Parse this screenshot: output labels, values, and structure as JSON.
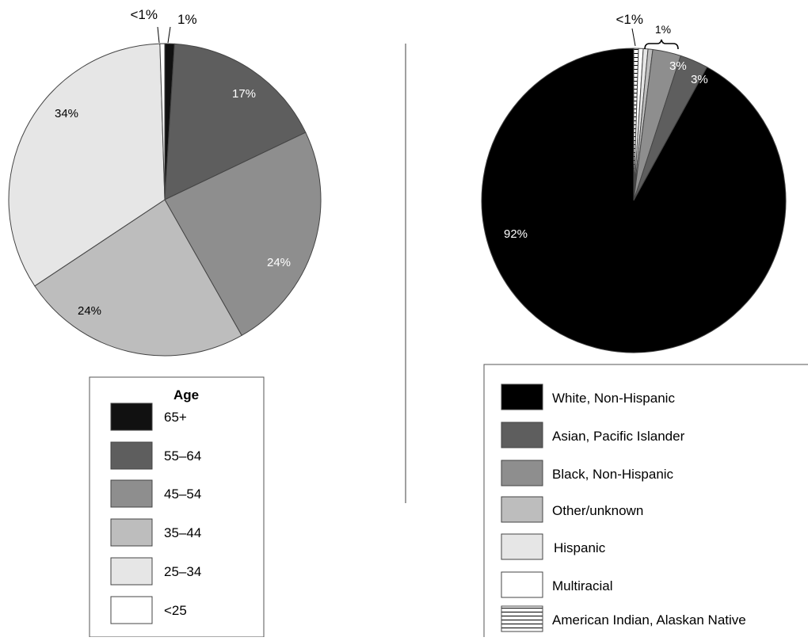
{
  "chart_data": [
    {
      "type": "pie",
      "legend_title": "Age",
      "legend_placement": "bottom",
      "slices": [
        {
          "label": "65+",
          "value": 1,
          "display": "1%",
          "color": "#111111"
        },
        {
          "label": "55–64",
          "value": 17,
          "display": "17%",
          "color": "#5e5e5e"
        },
        {
          "label": "45–54",
          "value": 24,
          "display": "24%",
          "color": "#8e8e8e"
        },
        {
          "label": "35–44",
          "value": 24,
          "display": "24%",
          "color": "#bdbdbd"
        },
        {
          "label": "25–34",
          "value": 34,
          "display": "34%",
          "color": "#e6e6e6"
        },
        {
          "label": "<25",
          "value": 0.5,
          "display": "<1%",
          "color": "#ffffff"
        }
      ]
    },
    {
      "type": "pie",
      "legend_placement": "bottom",
      "slices": [
        {
          "label": "White, Non-Hispanic",
          "value": 92,
          "display": "92%",
          "color": "#000000"
        },
        {
          "label": "Asian, Pacific Islander",
          "value": 3,
          "display": "3%",
          "color": "#5e5e5e"
        },
        {
          "label": "Black, Non-Hispanic",
          "value": 3,
          "display": "3%",
          "color": "#8e8e8e"
        },
        {
          "label": "Other/unknown",
          "value": 0.5,
          "display": "",
          "color": "#bdbdbd"
        },
        {
          "label": "Hispanic",
          "value": 0.5,
          "display": "",
          "color": "#e6e6e6"
        },
        {
          "label": "Multiracial",
          "value": 0.5,
          "display": "",
          "color": "#ffffff"
        },
        {
          "label": "American Indian, Alaskan Native",
          "value": 0.5,
          "display": "<1%",
          "color": "#ffffff",
          "pattern": "horizontal-lines"
        }
      ],
      "group_annotation": "1%"
    }
  ]
}
